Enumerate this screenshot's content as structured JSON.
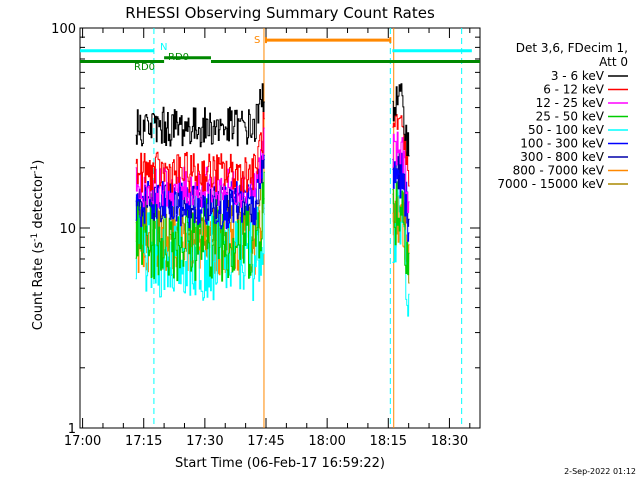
{
  "chart_data": {
    "type": "line",
    "title": "RHESSI Observing Summary Count Rates",
    "xlabel": "Start Time (06-Feb-17 16:59:22)",
    "ylabel": "Count Rate (s",
    "ylabel_sup": "-1",
    "ylabel_mid": " detector",
    "ylabel_end": ")",
    "y_scale": "log",
    "xlim": [
      "16:59:22",
      "18:37:30"
    ],
    "ylim": [
      1,
      100
    ],
    "x_ticks": [
      "17:00",
      "17:15",
      "17:30",
      "17:45",
      "18:00",
      "18:15",
      "18:30"
    ],
    "y_ticks": [
      "1",
      "10",
      "100"
    ],
    "legend_header": [
      "Det 3,6, FDecim 1,",
      "Att 0"
    ],
    "legend_position": "right",
    "footer": "2-Sep-2022 01:12",
    "segments": [
      {
        "start": "17:13:00",
        "end": "17:44:30"
      },
      {
        "start": "18:16:00",
        "end": "18:20:00"
      }
    ],
    "series": [
      {
        "name": "3 - 6 keV",
        "color": "#000000",
        "level_seg1": 32,
        "end_seg1": 48,
        "level_seg2": 42,
        "noise": 0.1
      },
      {
        "name": "6 - 12 keV",
        "color": "#ff0000",
        "level_seg1": 19,
        "end_seg1": 32,
        "level_seg2": 30,
        "noise": 0.1
      },
      {
        "name": "12 - 25 keV",
        "color": "#ff00ff",
        "level_seg1": 16,
        "end_seg1": 26,
        "level_seg2": 24,
        "noise": 0.1
      },
      {
        "name": "25 - 50 keV",
        "color": "#00cc00",
        "level_seg1": 9,
        "end_seg1": 14,
        "level_seg2": 13,
        "noise": 0.22
      },
      {
        "name": "50 - 100 keV",
        "color": "#00ffff",
        "level_seg1": 7.2,
        "end_seg1": 11,
        "level_seg2": 9.5,
        "noise": 0.22
      },
      {
        "name": "100 - 300 keV",
        "color": "#0000ff",
        "level_seg1": 13,
        "end_seg1": 22,
        "level_seg2": 18,
        "noise": 0.12
      },
      {
        "name": "300 - 800 keV",
        "color": "#0000aa",
        "level_seg1": 13.5,
        "end_seg1": 22,
        "level_seg2": 19,
        "noise": 0.1
      },
      {
        "name": "800 - 7000 keV",
        "color": "#ff8800",
        "level_seg1": 8,
        "end_seg1": 13,
        "level_seg2": 11,
        "noise": 0.14
      },
      {
        "name": "7000 - 15000 keV",
        "color": "#aa8800",
        "level_seg1": 10,
        "end_seg1": 15,
        "level_seg2": 12,
        "noise": 0.14
      }
    ],
    "flag_bars": [
      {
        "name": "N",
        "label": "N",
        "color": "#00ffff",
        "level": 77,
        "start": "16:59:22",
        "end": "17:17:30"
      },
      {
        "name": "N",
        "label": "",
        "color": "#00ffff",
        "level": 77,
        "start": "18:16:00",
        "end": "18:35:30"
      },
      {
        "name": "S",
        "label": "S",
        "color": "#ff8800",
        "level": 87,
        "start": "17:45:00",
        "end": "18:15:30"
      },
      {
        "name": "RD0",
        "label": "RD0",
        "color": "#008800",
        "level": 68,
        "start": "16:59:22",
        "end": "17:20:00"
      },
      {
        "name": "RD0",
        "label": "RD0",
        "color": "#008800",
        "level": 71,
        "start": "17:20:00",
        "end": "17:31:30"
      },
      {
        "name": "RD0",
        "label": "",
        "color": "#008800",
        "level": 68,
        "start": "17:31:30",
        "end": "18:37:30"
      }
    ],
    "vlines": [
      {
        "time": "17:17:30",
        "color": "#00ffff",
        "style": "dashed"
      },
      {
        "time": "17:44:30",
        "color": "#ff8800",
        "style": "solid"
      },
      {
        "time": "18:15:30",
        "color": "#00ffff",
        "style": "dashed"
      },
      {
        "time": "18:16:20",
        "color": "#ff8800",
        "style": "solid"
      },
      {
        "time": "18:33:00",
        "color": "#00ffff",
        "style": "dashed"
      }
    ]
  }
}
